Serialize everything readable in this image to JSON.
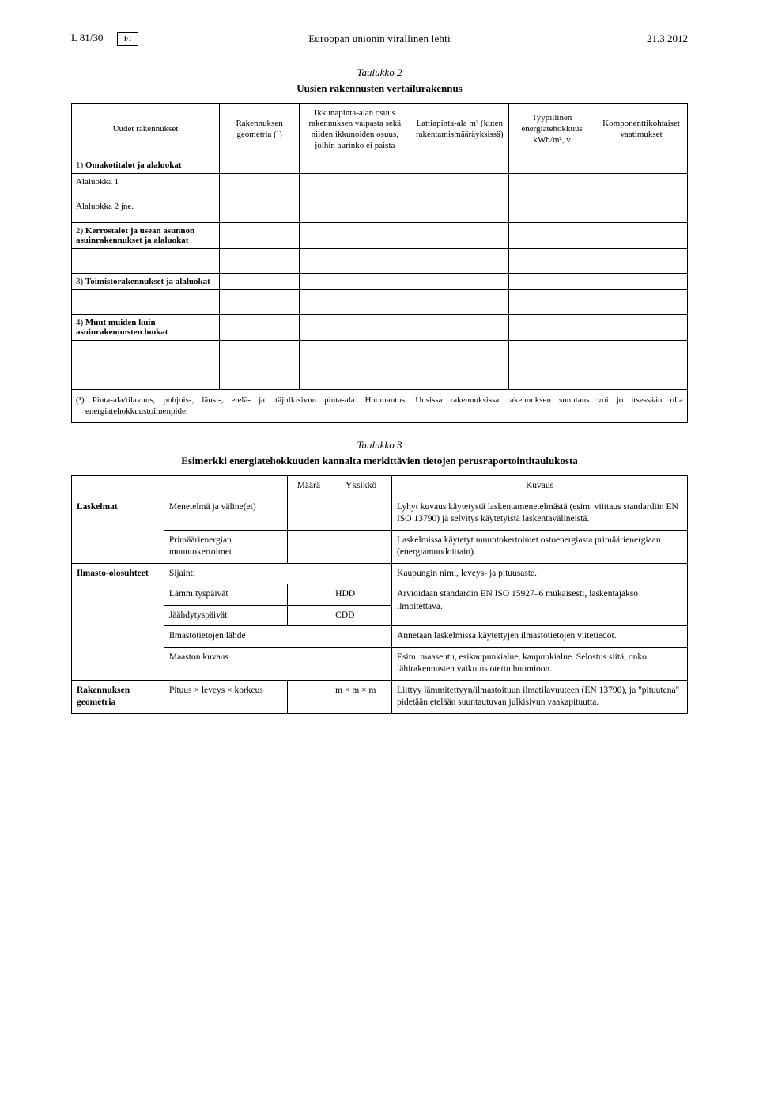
{
  "header": {
    "left": "L 81/30",
    "lang_box": "FI",
    "center": "Euroopan unionin virallinen lehti",
    "right": "21.3.2012"
  },
  "table2": {
    "caption_title": "Taulukko 2",
    "caption_subtitle": "Uusien rakennusten vertailurakennus",
    "headers": {
      "c1": "Uudet rakennukset",
      "c2": "Rakennuksen geometria (¹)",
      "c3": "Ikkunapinta-alan osuus rakennuksen vaipasta sekä niiden ikkunoiden osuus, joihin aurinko ei paista",
      "c4": "Lattiapinta-ala m² (kuten rakenta­mismääräyksissä)",
      "c5": "Tyypillinen energiatehokkuus kWh/m², v",
      "c6": "Komponenttikoh­taiset vaatimukset"
    },
    "rows": {
      "r0": "1) Omakotitalot ja alaluokat",
      "r1": "Alaluokka 1",
      "r2": "Alaluokka 2 jne.",
      "r3": "2) Kerrostalot ja usean asunnon asuinrakennukset ja alaluokat",
      "r4": "3) Toimistorakennukset ja alaluokat",
      "r5": "4) Muut muiden kuin asuinrakennusten luokat"
    },
    "footnote": "(¹) Pinta-ala/tilavuus, pohjois-, länsi-, etelä- ja itäjulkisivun pinta-ala. Huomautus: Uusissa rakennuksissa rakennuksen suuntaus voi jo itsessään olla energiatehokkuustoimenpide."
  },
  "table3": {
    "caption_title": "Taulukko 3",
    "caption_subtitle": "Esimerkki energiatehokkuuden kannalta merkittävien tietojen perusraportointitaulukosta",
    "headers": {
      "c3": "Määrä",
      "c4": "Yksikkö",
      "c5": "Kuvaus"
    },
    "rows": [
      {
        "c1": "Laskelmat",
        "c2": "Menetelmä ja väline(et)",
        "c3": "",
        "c4": "",
        "c5": "Lyhyt kuvaus käytetystä laskentamenetelmästä (esim. viittaus standardiin EN ISO 13790) ja selvitys käyte­tyistä laskentavälineistä."
      },
      {
        "c1": "",
        "c2": "Primäärienergian muuntokertoimet",
        "c3": "",
        "c4": "",
        "c5": "Laskelmissa käytetyt muuntokertoimet ostoenergiasta primäärienergiaan (energiamuodoittain)."
      },
      {
        "c1": "Ilmasto-olosuhteet",
        "c2": "Sijainti",
        "c3": "",
        "c4": "",
        "c5": "Kaupungin nimi, leveys- ja pituusaste."
      },
      {
        "c1": "",
        "c2": "Lämmityspäivät",
        "c3": "",
        "c4": "HDD",
        "c5": "Arvioidaan standardin EN ISO 15927–6 mukaisesti, laskentajakso ilmoitettava."
      },
      {
        "c1": "",
        "c2": "Jäähdytyspäivät",
        "c3": "",
        "c4": "CDD",
        "c5": ""
      },
      {
        "c1": "",
        "c2": "Ilmastotietojen lähde",
        "c3": "",
        "c4": "",
        "c5": "Annetaan laskelmissa käytettyjen ilmastotietojen vii­tetiedot."
      },
      {
        "c1": "",
        "c2": "Maaston kuvaus",
        "c3": "",
        "c4": "",
        "c5": "Esim. maaseutu, esikaupunkialue, kaupunkialue. Se­lostus siitä, onko lähirakennusten vaikutus otettu huomioon."
      },
      {
        "c1": "Rakennuksen geometria",
        "c2": "Pituus × leveys × korkeus",
        "c3": "",
        "c4": "m × m × m",
        "c5": "Liittyy lämmitettyyn/ilmastoituun ilmatilavuuteen (EN 13790), ja \"pituutena\" pidetään etelään suuntautuvan julkisivun vaakapituutta."
      }
    ]
  }
}
